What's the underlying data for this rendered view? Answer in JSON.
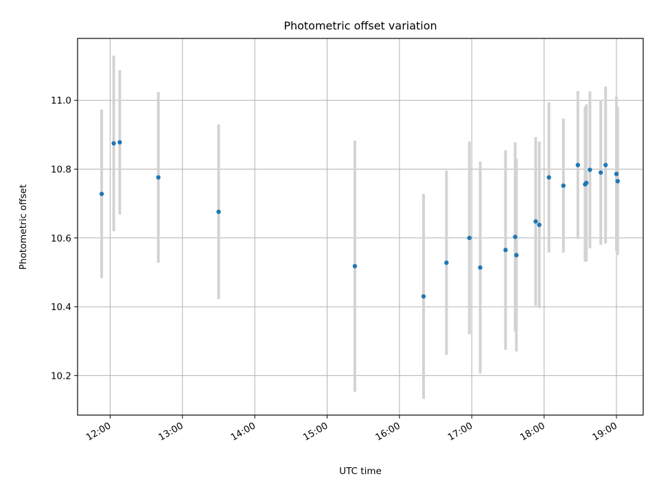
{
  "chart_data": {
    "type": "scatter",
    "title": "Photometric offset variation",
    "xlabel": "UTC time",
    "ylabel": "Photometric offset",
    "grid": true,
    "x_tick_labels": [
      "12:00",
      "13:00",
      "14:00",
      "15:00",
      "16:00",
      "17:00",
      "18:00",
      "19:00"
    ],
    "x_tick_values_hours": [
      12,
      13,
      14,
      15,
      16,
      17,
      18,
      19
    ],
    "y_ticks": [
      10.2,
      10.4,
      10.6,
      10.8,
      11.0
    ],
    "xlim_hours": [
      11.55,
      19.37
    ],
    "ylim": [
      10.085,
      11.18
    ],
    "colors": {
      "points": "#1f77b4",
      "error_bars": "#d3d3d3",
      "grid": "#b0b0b0"
    },
    "series": [
      {
        "x_time": [
          "11:53",
          "12:03",
          "12:08",
          "12:40",
          "13:30",
          "15:23",
          "16:20",
          "16:39",
          "16:58",
          "17:07",
          "17:28",
          "17:36",
          "17:37",
          "17:53",
          "17:56",
          "18:04",
          "18:16",
          "18:28",
          "18:34",
          "18:35",
          "18:38",
          "18:47",
          "18:51",
          "19:00",
          "19:01"
        ],
        "y": [
          10.728,
          10.875,
          10.878,
          10.776,
          10.676,
          10.518,
          10.43,
          10.528,
          10.6,
          10.514,
          10.565,
          10.603,
          10.55,
          10.648,
          10.638,
          10.776,
          10.752,
          10.812,
          10.756,
          10.76,
          10.798,
          10.79,
          10.812,
          10.786,
          10.765
        ],
        "y_err": [
          0.245,
          0.255,
          0.21,
          0.248,
          0.254,
          0.365,
          0.298,
          0.268,
          0.28,
          0.308,
          0.29,
          0.275,
          0.28,
          0.245,
          0.242,
          0.218,
          0.195,
          0.215,
          0.225,
          0.228,
          0.228,
          0.21,
          0.228,
          0.225,
          0.215
        ]
      }
    ]
  }
}
